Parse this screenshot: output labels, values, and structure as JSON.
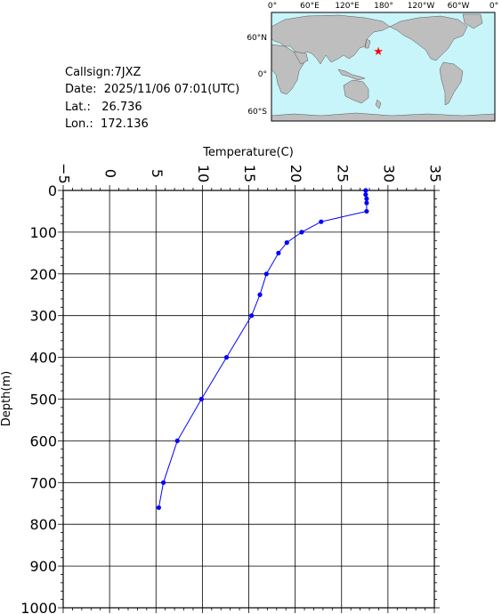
{
  "info": {
    "callsign": "Callsign:7JXZ",
    "date": "Date:  2025/11/06 07:01(UTC)",
    "lat": "Lat.:   26.736",
    "lon": "Lon.:  172.136"
  },
  "map": {
    "lon_labels": [
      "0°",
      "60°E",
      "120°E",
      "180°",
      "120°W",
      "60°W",
      "0°"
    ],
    "lat_labels": [
      "60°N",
      "0°",
      "60°S"
    ],
    "ocean_color": "#c8f5fa",
    "land_color": "#bebebe",
    "marker_color": "#ff0000",
    "marker": {
      "lat": 26.736,
      "lon": 172.136
    }
  },
  "chart_data": {
    "type": "line",
    "xlabel": "Temperature(C)",
    "ylabel": "Depth(m)",
    "xlim": [
      -5,
      35
    ],
    "ylim": [
      0,
      1000
    ],
    "x_axis_position": "top",
    "y_reversed": true,
    "x_ticks": [
      -5,
      0,
      5,
      10,
      15,
      20,
      25,
      30,
      35
    ],
    "y_ticks": [
      0,
      100,
      200,
      300,
      400,
      500,
      600,
      700,
      800,
      900,
      1000
    ],
    "grid": true,
    "line_color": "#0000ff",
    "series": [
      {
        "points": [
          [
            27.6,
            0
          ],
          [
            27.6,
            10
          ],
          [
            27.7,
            20
          ],
          [
            27.7,
            30
          ],
          [
            27.7,
            50
          ],
          [
            22.8,
            75
          ],
          [
            20.7,
            100
          ],
          [
            19.1,
            125
          ],
          [
            18.2,
            150
          ],
          [
            16.9,
            200
          ],
          [
            16.2,
            250
          ],
          [
            15.3,
            300
          ],
          [
            12.6,
            400
          ],
          [
            9.9,
            500
          ],
          [
            7.3,
            600
          ],
          [
            5.8,
            700
          ],
          [
            5.3,
            760
          ]
        ]
      }
    ]
  }
}
